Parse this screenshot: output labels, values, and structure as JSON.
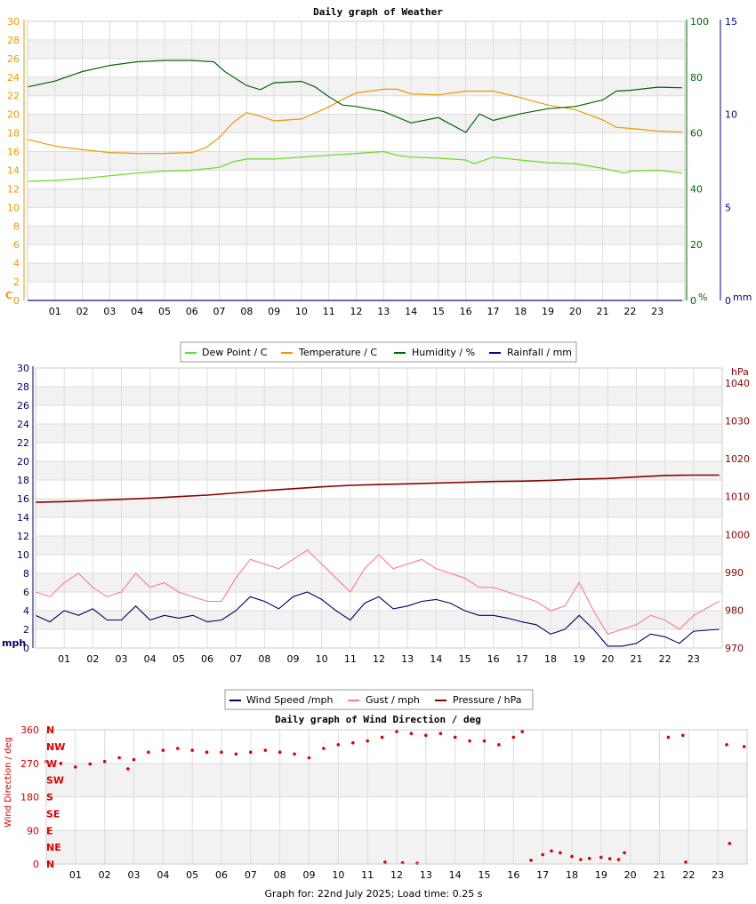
{
  "footer": "Graph for: 22nd July 2025; Load time: 0.25 s",
  "chart_data": [
    {
      "type": "line",
      "title": "Daily graph of Weather",
      "x_ticks": [
        "01",
        "02",
        "03",
        "04",
        "05",
        "06",
        "07",
        "08",
        "09",
        "10",
        "11",
        "12",
        "13",
        "14",
        "15",
        "16",
        "17",
        "18",
        "19",
        "20",
        "21",
        "22",
        "23"
      ],
      "xlim": [
        0,
        24
      ],
      "y_left": {
        "unit": "C",
        "ticks": [
          0,
          2,
          4,
          6,
          8,
          10,
          12,
          14,
          16,
          18,
          20,
          22,
          24,
          26,
          28,
          30
        ],
        "lim": [
          0,
          30
        ]
      },
      "y_right1": {
        "unit": "%",
        "ticks": [
          0,
          20,
          40,
          60,
          80,
          100
        ],
        "lim": [
          0,
          100
        ]
      },
      "y_right2": {
        "unit": "mm",
        "ticks": [
          0,
          5,
          10,
          15
        ],
        "lim": [
          0,
          15
        ]
      },
      "legend": [
        "Dew Point / C",
        "Temperature / C",
        "Humidity / %",
        "Rainfall / mm"
      ],
      "colors": {
        "dew": "#66dd22",
        "temp": "#ee9900",
        "hum": "#006600",
        "rain": "#000099",
        "left_axis": "#ee9900",
        "hum_axis": "#006600",
        "rain_axis": "#000099"
      },
      "series": [
        {
          "name": "Dew Point / C",
          "axis": "C",
          "x": [
            0,
            1,
            2,
            3,
            4,
            5,
            6,
            7,
            7.5,
            8,
            9,
            10,
            11,
            12,
            13,
            13.5,
            14,
            15,
            16,
            16.3,
            17,
            18,
            19,
            20,
            21,
            21.8,
            22,
            23,
            23.9
          ],
          "y": [
            12.8,
            12.9,
            13.1,
            13.4,
            13.7,
            13.9,
            14,
            14.3,
            14.9,
            15.2,
            15.2,
            15.4,
            15.6,
            15.8,
            16.0,
            15.6,
            15.4,
            15.3,
            15.1,
            14.7,
            15.4,
            15.1,
            14.8,
            14.7,
            14.2,
            13.7,
            13.9,
            14.0,
            13.7
          ]
        },
        {
          "name": "Temperature / C",
          "axis": "C",
          "x": [
            0,
            1,
            2,
            3,
            4,
            5,
            6,
            6.5,
            7,
            7.5,
            8,
            8.5,
            9,
            10,
            11,
            11.5,
            12,
            13,
            13.5,
            14,
            15,
            16,
            17,
            18,
            19,
            20,
            21,
            21.5,
            22,
            23,
            23.9
          ],
          "y": [
            17.3,
            16.6,
            16.2,
            15.9,
            15.8,
            15.8,
            15.9,
            16.4,
            17.5,
            19.1,
            20.2,
            19.8,
            19.3,
            19.5,
            20.8,
            21.6,
            22.3,
            22.7,
            22.7,
            22.2,
            22.1,
            22.5,
            22.5,
            21.8,
            21.0,
            20.5,
            19.4,
            18.6,
            18.5,
            18.2,
            18.1
          ]
        },
        {
          "name": "Humidity / %",
          "axis": "%",
          "x": [
            0,
            1,
            2,
            3,
            4,
            5,
            6,
            6.8,
            7.2,
            8,
            8.5,
            9,
            10,
            10.5,
            11,
            11.5,
            12,
            13,
            14,
            15,
            16,
            16.5,
            17,
            18,
            19,
            20,
            21,
            21.5,
            22,
            23,
            23.9
          ],
          "y": [
            76.5,
            78.6,
            82,
            84.2,
            85.5,
            86,
            86,
            85.5,
            82,
            77,
            75.5,
            78,
            78.5,
            76.5,
            73,
            70,
            69.5,
            67.7,
            63.6,
            65.5,
            60.2,
            66.8,
            64.5,
            66.9,
            68.7,
            69.5,
            71.8,
            75,
            75.3,
            76.4,
            76.2
          ]
        },
        {
          "name": "Rainfall / mm",
          "axis": "mm",
          "x": [
            0,
            23.9
          ],
          "y": [
            0,
            0
          ]
        }
      ]
    },
    {
      "type": "line",
      "title": "",
      "x_ticks": [
        "01",
        "02",
        "03",
        "04",
        "05",
        "06",
        "07",
        "08",
        "09",
        "10",
        "11",
        "12",
        "13",
        "14",
        "15",
        "16",
        "17",
        "18",
        "19",
        "20",
        "21",
        "22",
        "23"
      ],
      "xlim": [
        0,
        24
      ],
      "y_left": {
        "unit": "mph",
        "ticks": [
          0,
          2,
          4,
          6,
          8,
          10,
          12,
          14,
          16,
          18,
          20,
          22,
          24,
          26,
          28,
          30
        ],
        "lim": [
          0,
          30
        ]
      },
      "y_right": {
        "unit": "hPa",
        "ticks": [
          970,
          980,
          990,
          1000,
          1010,
          1020,
          1030,
          1040
        ],
        "lim": [
          970,
          1044
        ]
      },
      "legend": [
        "Wind Speed /mph",
        "Gust / mph",
        "Pressure / hPa"
      ],
      "colors": {
        "speed": "#000066",
        "gust": "#ff7799",
        "pressure": "#880000",
        "left_axis": "#000066",
        "right_axis": "#880000"
      },
      "series": [
        {
          "name": "Wind Speed /mph",
          "axis": "mph",
          "x": [
            0,
            0.5,
            1,
            1.5,
            2,
            2.5,
            3,
            3.5,
            4,
            4.5,
            5,
            5.5,
            6,
            6.5,
            7,
            7.5,
            8,
            8.5,
            9,
            9.5,
            10,
            10.5,
            11,
            11.5,
            12,
            12.5,
            13,
            13.5,
            14,
            14.5,
            15,
            15.5,
            16,
            16.5,
            17,
            17.5,
            18,
            18.5,
            19,
            19.5,
            20,
            20.5,
            21,
            21.5,
            22,
            22.5,
            23,
            23.9
          ],
          "y": [
            3.5,
            2.8,
            4.0,
            3.5,
            4.2,
            3.0,
            3.0,
            4.5,
            3.0,
            3.5,
            3.2,
            3.5,
            2.8,
            3.0,
            4.0,
            5.5,
            5.0,
            4.2,
            5.5,
            6.0,
            5.2,
            4.0,
            3.0,
            4.8,
            5.5,
            4.2,
            4.5,
            5.0,
            5.2,
            4.8,
            4.0,
            3.5,
            3.5,
            3.2,
            2.8,
            2.5,
            1.5,
            2.0,
            3.5,
            2.0,
            0.2,
            0.2,
            0.5,
            1.5,
            1.2,
            0.5,
            1.8,
            2.0
          ]
        },
        {
          "name": "Gust / mph",
          "axis": "mph",
          "x": [
            0,
            0.5,
            1,
            1.5,
            2,
            2.5,
            3,
            3.5,
            4,
            4.5,
            5,
            5.5,
            6,
            6.5,
            7,
            7.5,
            8,
            8.5,
            9,
            9.5,
            10,
            10.5,
            11,
            11.5,
            12,
            12.5,
            13,
            13.5,
            14,
            14.5,
            15,
            15.5,
            16,
            16.5,
            17,
            17.5,
            18,
            18.5,
            19,
            19.5,
            20,
            20.5,
            21,
            21.5,
            22,
            22.5,
            23,
            23.9
          ],
          "y": [
            6.0,
            5.5,
            7.0,
            8.0,
            6.5,
            5.5,
            6.0,
            8.0,
            6.5,
            7.0,
            6.0,
            5.5,
            5.0,
            5.0,
            7.5,
            9.5,
            9.0,
            8.5,
            9.5,
            10.5,
            9.0,
            7.5,
            6.0,
            8.5,
            10.0,
            8.5,
            9.0,
            9.5,
            8.5,
            8.0,
            7.5,
            6.5,
            6.5,
            6.0,
            5.5,
            5.0,
            4.0,
            4.5,
            7.0,
            4.0,
            1.5,
            2.0,
            2.5,
            3.5,
            3.0,
            2.0,
            3.5,
            5.0
          ]
        },
        {
          "name": "Pressure / hPa",
          "axis": "hPa",
          "x": [
            0,
            1,
            2,
            3,
            4,
            5,
            6,
            7,
            8,
            9,
            10,
            11,
            12,
            13,
            14,
            15,
            16,
            17,
            18,
            19,
            20,
            21,
            22,
            23,
            23.9
          ],
          "y": [
            1008.5,
            1008.7,
            1009,
            1009.3,
            1009.6,
            1010,
            1010.4,
            1011,
            1011.6,
            1012.1,
            1012.6,
            1013,
            1013.2,
            1013.4,
            1013.6,
            1013.8,
            1014,
            1014.1,
            1014.3,
            1014.6,
            1014.8,
            1015.2,
            1015.6,
            1015.7,
            1015.7
          ]
        }
      ]
    },
    {
      "type": "scatter",
      "title": "Daily graph of Wind Direction / deg",
      "ylabel": "Wind Direction / deg",
      "x_ticks": [
        "01",
        "02",
        "03",
        "04",
        "05",
        "06",
        "07",
        "08",
        "09",
        "10",
        "11",
        "12",
        "13",
        "14",
        "15",
        "16",
        "17",
        "18",
        "19",
        "20",
        "21",
        "22",
        "23"
      ],
      "xlim": [
        0,
        24
      ],
      "ylim": [
        0,
        360
      ],
      "y_ticks": [
        0,
        90,
        180,
        270,
        360
      ],
      "compass": [
        "N",
        "NE",
        "E",
        "SE",
        "S",
        "SW",
        "W",
        "NW",
        "N"
      ],
      "color": "#dd0000",
      "series": [
        {
          "name": "",
          "x": [
            0,
            0.5,
            1,
            1.5,
            2,
            2.5,
            2.8,
            3,
            3.5,
            4,
            4.5,
            5,
            5.5,
            6,
            6.5,
            7,
            7.5,
            8,
            8.5,
            9,
            9.5,
            10,
            10.5,
            11,
            11.5,
            12,
            12.5,
            13,
            13.5,
            14,
            14.5,
            15,
            15.5,
            16,
            16.3,
            21.3,
            21.8,
            23.3,
            23.9
          ],
          "y": [
            275,
            270,
            260,
            268,
            275,
            285,
            255,
            280,
            300,
            305,
            310,
            305,
            300,
            300,
            295,
            300,
            305,
            300,
            295,
            285,
            310,
            320,
            325,
            330,
            340,
            355,
            350,
            345,
            350,
            340,
            330,
            330,
            320,
            340,
            355,
            340,
            345,
            320,
            315
          ]
        },
        {
          "name": "",
          "x": [
            16.6,
            17,
            17.3,
            17.6,
            18,
            18.3,
            18.6,
            19,
            19.3,
            19.6,
            19.8,
            11.6,
            12.2,
            12.7,
            21.9,
            23.4
          ],
          "y": [
            10,
            25,
            35,
            30,
            20,
            12,
            15,
            18,
            14,
            12,
            30,
            5,
            3,
            2,
            5,
            55
          ]
        }
      ]
    }
  ]
}
